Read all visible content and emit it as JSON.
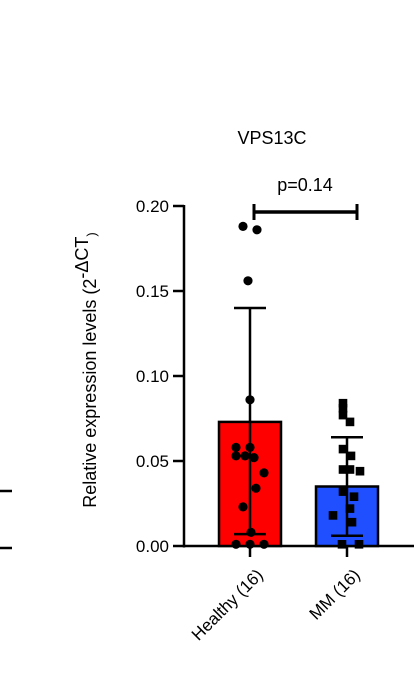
{
  "chart_data": {
    "type": "bar",
    "title": "VPS13C",
    "ylabel": "Relative expression levels (2",
    "ylabel_superscript": "-ΔCT",
    "ylabel_close": ")",
    "ylim": [
      0,
      0.2
    ],
    "yticks": [
      0.0,
      0.05,
      0.1,
      0.15,
      0.2
    ],
    "ytick_labels": [
      "0.00",
      "0.05",
      "0.10",
      "0.15",
      "0.20"
    ],
    "categories": [
      "Healthy (16)",
      "MM (16)"
    ],
    "series": [
      {
        "values": [
          0.073,
          0.035
        ],
        "error_upper": [
          0.14,
          0.064
        ],
        "error_lower": [
          0.007,
          0.006
        ],
        "colors": [
          "#ff0000",
          "#1f4fff"
        ],
        "points": [
          [
            0.188,
            0.186,
            0.156,
            0.086,
            0.058,
            0.058,
            0.053,
            0.053,
            0.052,
            0.043,
            0.034,
            0.023,
            0.008,
            0.001,
            0.001,
            0.001
          ],
          [
            0.084,
            0.081,
            0.077,
            0.073,
            0.057,
            0.053,
            0.045,
            0.045,
            0.044,
            0.032,
            0.029,
            0.022,
            0.018,
            0.014,
            0.001,
            0.001
          ]
        ]
      }
    ],
    "annotation": "p=0.14",
    "grid": false
  }
}
